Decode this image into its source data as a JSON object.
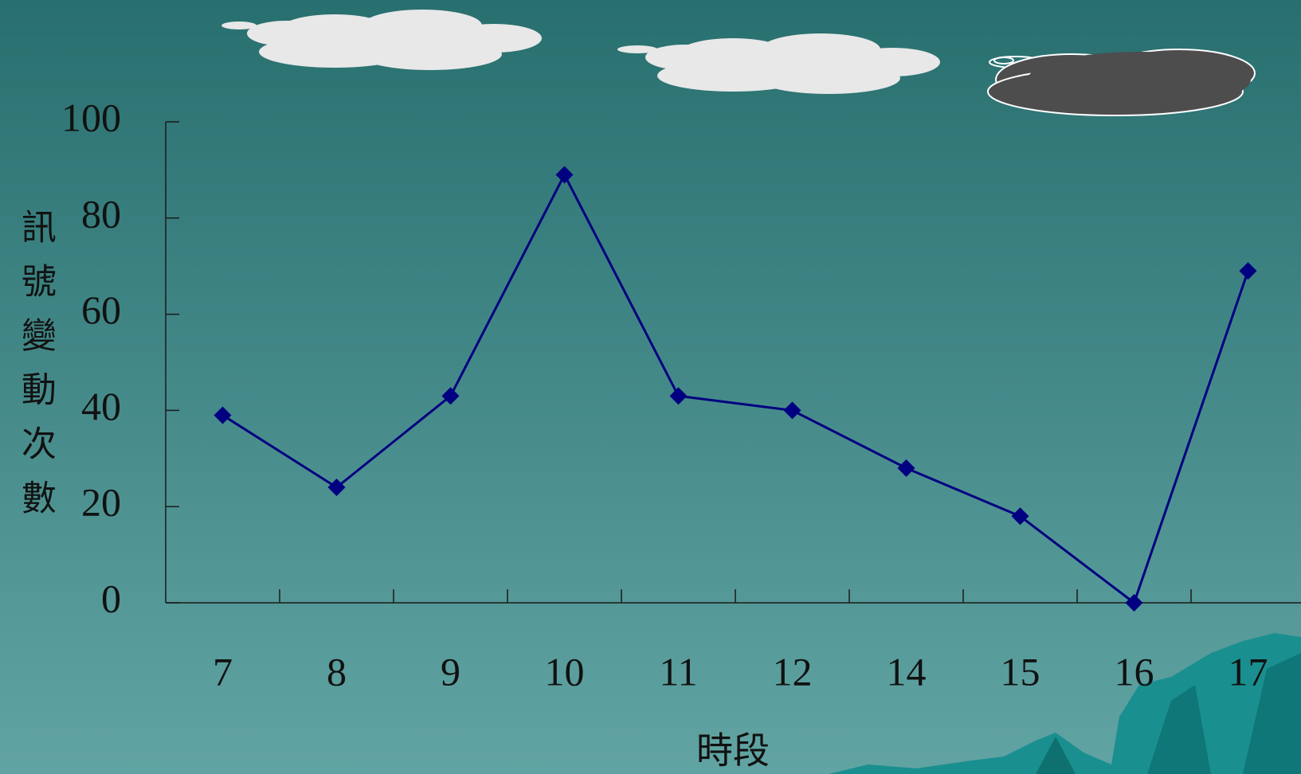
{
  "chart_data": {
    "type": "line",
    "x_label": "時段",
    "y_label": "訊號變動次數",
    "categories": [
      "7",
      "8",
      "9",
      "10",
      "11",
      "12",
      "14",
      "15",
      "16",
      "17"
    ],
    "values": [
      39,
      24,
      43,
      89,
      43,
      40,
      28,
      18,
      0,
      69
    ],
    "color": "#000080",
    "ylim": [
      0,
      100
    ],
    "yticks": [
      0,
      20,
      40,
      60,
      80,
      100
    ],
    "grid": false
  }
}
